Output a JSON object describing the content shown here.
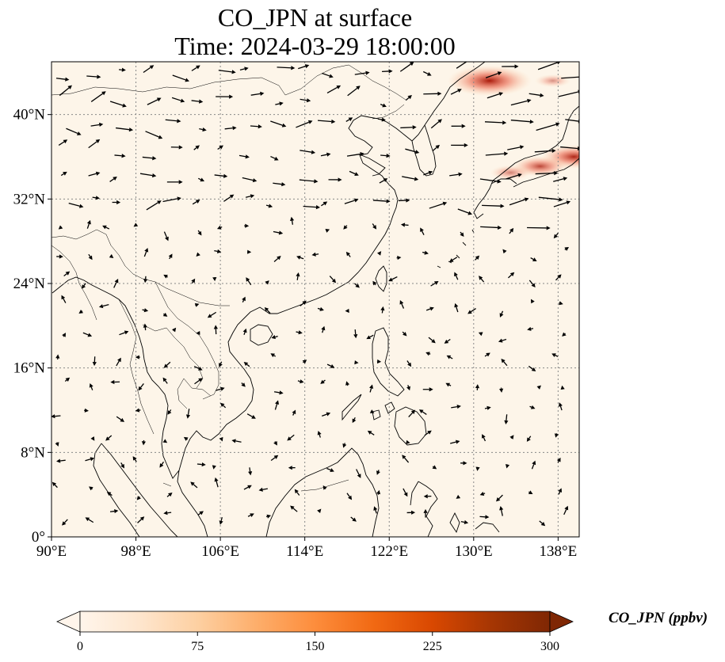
{
  "title": {
    "line1": "CO_JPN at surface",
    "line2": "Time: 2024-03-29 18:00:00"
  },
  "map": {
    "extent": {
      "lon": [
        90,
        140
      ],
      "lat": [
        0,
        45
      ]
    },
    "background_color": "#fdf5e9",
    "gridline_color": "#888888",
    "lon_ticks": [
      {
        "value": 90,
        "label": "90°E"
      },
      {
        "value": 98,
        "label": "98°E"
      },
      {
        "value": 106,
        "label": "106°E"
      },
      {
        "value": 114,
        "label": "114°E"
      },
      {
        "value": 122,
        "label": "122°E"
      },
      {
        "value": 130,
        "label": "130°E"
      },
      {
        "value": 138,
        "label": "138°E"
      }
    ],
    "lat_ticks": [
      {
        "value": 0,
        "label": "0°"
      },
      {
        "value": 8,
        "label": "8°N"
      },
      {
        "value": 16,
        "label": "16°N"
      },
      {
        "value": 24,
        "label": "24°N"
      },
      {
        "value": 32,
        "label": "32°N"
      },
      {
        "value": 40,
        "label": "40°N"
      }
    ],
    "hotspots": [
      {
        "name": "japan-plume-east",
        "lon": 139.5,
        "lat": 36.0,
        "level": 0.6
      },
      {
        "name": "japan-plume-central",
        "lon": 136.3,
        "lat": 35.1,
        "level": 0.45
      },
      {
        "name": "japan-plume-west",
        "lon": 133.5,
        "lat": 34.5,
        "level": 0.2
      },
      {
        "name": "vladivostok-plume",
        "lon": 131.5,
        "lat": 43.2,
        "level": 0.9
      },
      {
        "name": "north-pacific-plume",
        "lon": 137.5,
        "lat": 43.2,
        "level": 0.12
      }
    ]
  },
  "colorbar": {
    "title": "CO_JPN (ppbv)",
    "min": 0,
    "max": 300,
    "ticks": [
      "0",
      "75",
      "150",
      "225",
      "300"
    ],
    "colors": [
      "#fff5eb",
      "#fee6ce",
      "#fdd0a2",
      "#fdae6b",
      "#fd8d3c",
      "#f16913",
      "#d94801",
      "#a63603",
      "#7f2704"
    ],
    "extend": "both"
  }
}
